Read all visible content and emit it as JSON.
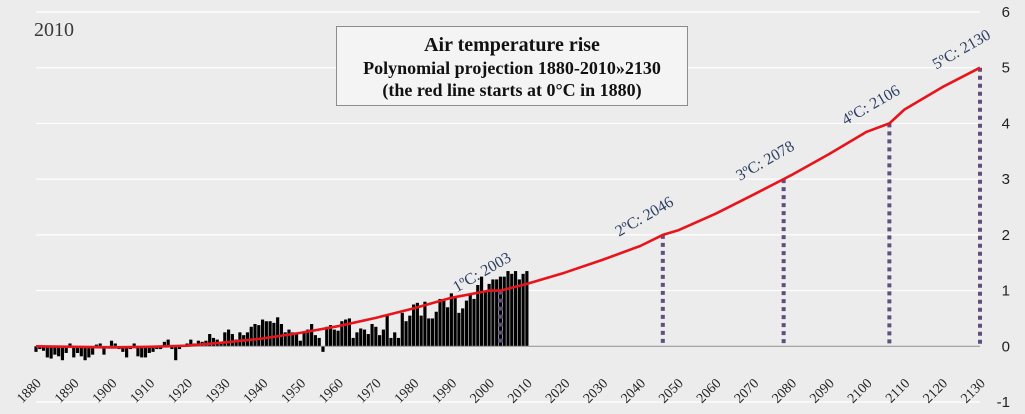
{
  "corner_label": "2010",
  "title": {
    "line1": "Air temperature rise",
    "line2": "Polynomial projection 1880-2010»2130",
    "line3": "(the red line starts at 0°C in 1880)"
  },
  "colors": {
    "background": "#ececec",
    "gridline": "#ffffff",
    "bars": "#000000",
    "trend": "#e8141b",
    "markers": "#5e4f7f",
    "annotation": "#2e3e63"
  },
  "chart_data": {
    "type": "bar",
    "xlim": [
      1880,
      2130
    ],
    "ylim": [
      -1,
      6
    ],
    "x_ticks": [
      "1880",
      "1890",
      "1900",
      "1910",
      "1920",
      "1930",
      "1940",
      "1950",
      "1960",
      "1970",
      "1980",
      "1990",
      "2000",
      "2010",
      "2020",
      "2030",
      "2040",
      "2050",
      "2060",
      "2070",
      "2080",
      "2090",
      "2100",
      "2110",
      "2120",
      "2130"
    ],
    "y_ticks": [
      "-1",
      "0",
      "1",
      "2",
      "3",
      "4",
      "5",
      "6"
    ],
    "y_axis_position": "right",
    "grid": true,
    "series": [
      {
        "kind": "bar",
        "x": [
          1880,
          1881,
          1882,
          1883,
          1884,
          1885,
          1886,
          1887,
          1888,
          1889,
          1890,
          1891,
          1892,
          1893,
          1894,
          1895,
          1896,
          1897,
          1898,
          1899,
          1900,
          1901,
          1902,
          1903,
          1904,
          1905,
          1906,
          1907,
          1908,
          1909,
          1910,
          1911,
          1912,
          1913,
          1914,
          1915,
          1916,
          1917,
          1918,
          1919,
          1920,
          1921,
          1922,
          1923,
          1924,
          1925,
          1926,
          1927,
          1928,
          1929,
          1930,
          1931,
          1932,
          1933,
          1934,
          1935,
          1936,
          1937,
          1938,
          1939,
          1940,
          1941,
          1942,
          1943,
          1944,
          1945,
          1946,
          1947,
          1948,
          1949,
          1950,
          1951,
          1952,
          1953,
          1954,
          1955,
          1956,
          1957,
          1958,
          1959,
          1960,
          1961,
          1962,
          1963,
          1964,
          1965,
          1966,
          1967,
          1968,
          1969,
          1970,
          1971,
          1972,
          1973,
          1974,
          1975,
          1976,
          1977,
          1978,
          1979,
          1980,
          1981,
          1982,
          1983,
          1984,
          1985,
          1986,
          1987,
          1988,
          1989,
          1990,
          1991,
          1992,
          1993,
          1994,
          1995,
          1996,
          1997,
          1998,
          1999,
          2000,
          2001,
          2002,
          2003,
          2004,
          2005,
          2006,
          2007,
          2008,
          2009,
          2010
        ],
        "values": [
          -0.1,
          -0.05,
          -0.08,
          -0.2,
          -0.22,
          -0.15,
          -0.18,
          -0.25,
          -0.12,
          0.05,
          -0.2,
          -0.12,
          -0.18,
          -0.25,
          -0.2,
          -0.15,
          0.03,
          0.05,
          -0.15,
          -0.02,
          0.1,
          0.05,
          -0.05,
          -0.1,
          -0.2,
          -0.05,
          0.05,
          -0.18,
          -0.2,
          -0.2,
          -0.12,
          -0.1,
          -0.05,
          -0.05,
          0.08,
          0.12,
          -0.05,
          -0.25,
          -0.05,
          0.02,
          0.05,
          0.12,
          0.05,
          0.1,
          0.08,
          0.1,
          0.22,
          0.15,
          0.12,
          0.05,
          0.25,
          0.3,
          0.22,
          0.12,
          0.25,
          0.2,
          0.25,
          0.35,
          0.4,
          0.38,
          0.48,
          0.45,
          0.45,
          0.42,
          0.52,
          0.4,
          0.25,
          0.3,
          0.25,
          0.22,
          0.1,
          0.25,
          0.3,
          0.4,
          0.2,
          0.15,
          -0.1,
          0.35,
          0.38,
          0.3,
          0.28,
          0.45,
          0.48,
          0.5,
          0.15,
          0.25,
          0.32,
          0.3,
          0.22,
          0.4,
          0.35,
          0.2,
          0.3,
          0.55,
          0.15,
          0.25,
          0.15,
          0.6,
          0.45,
          0.55,
          0.75,
          0.78,
          0.55,
          0.8,
          0.5,
          0.5,
          0.62,
          0.85,
          0.82,
          0.7,
          0.95,
          0.88,
          0.6,
          0.68,
          0.82,
          0.95,
          0.85,
          1.1,
          1.25,
          1.0,
          1.12,
          1.2,
          1.2,
          1.25,
          1.25,
          1.35,
          1.3,
          1.35,
          1.2,
          1.3,
          1.35
        ]
      },
      {
        "kind": "line",
        "name": "polynomial projection",
        "x": [
          1880,
          1890,
          1900,
          1910,
          1920,
          1930,
          1940,
          1950,
          1960,
          1970,
          1980,
          1990,
          2000,
          2003,
          2010,
          2020,
          2030,
          2040,
          2046,
          2050,
          2060,
          2070,
          2078,
          2080,
          2090,
          2100,
          2106,
          2110,
          2120,
          2130
        ],
        "values": [
          0.0,
          -0.01,
          -0.02,
          -0.01,
          0.01,
          0.07,
          0.14,
          0.24,
          0.36,
          0.51,
          0.68,
          0.87,
          1.0,
          1.0,
          1.12,
          1.32,
          1.55,
          1.8,
          2.0,
          2.08,
          2.38,
          2.72,
          3.0,
          3.07,
          3.45,
          3.85,
          4.0,
          4.25,
          4.65,
          5.0
        ]
      }
    ],
    "thresholds": [
      {
        "label": "1ºC: 2003",
        "x": 2003,
        "y": 1
      },
      {
        "label": "2ºC: 2046",
        "x": 2046,
        "y": 2
      },
      {
        "label": "3ºC: 2078",
        "x": 2078,
        "y": 3
      },
      {
        "label": "4ºC: 2106",
        "x": 2106,
        "y": 4
      },
      {
        "label": "5ºC: 2130",
        "x": 2130,
        "y": 5
      }
    ]
  }
}
